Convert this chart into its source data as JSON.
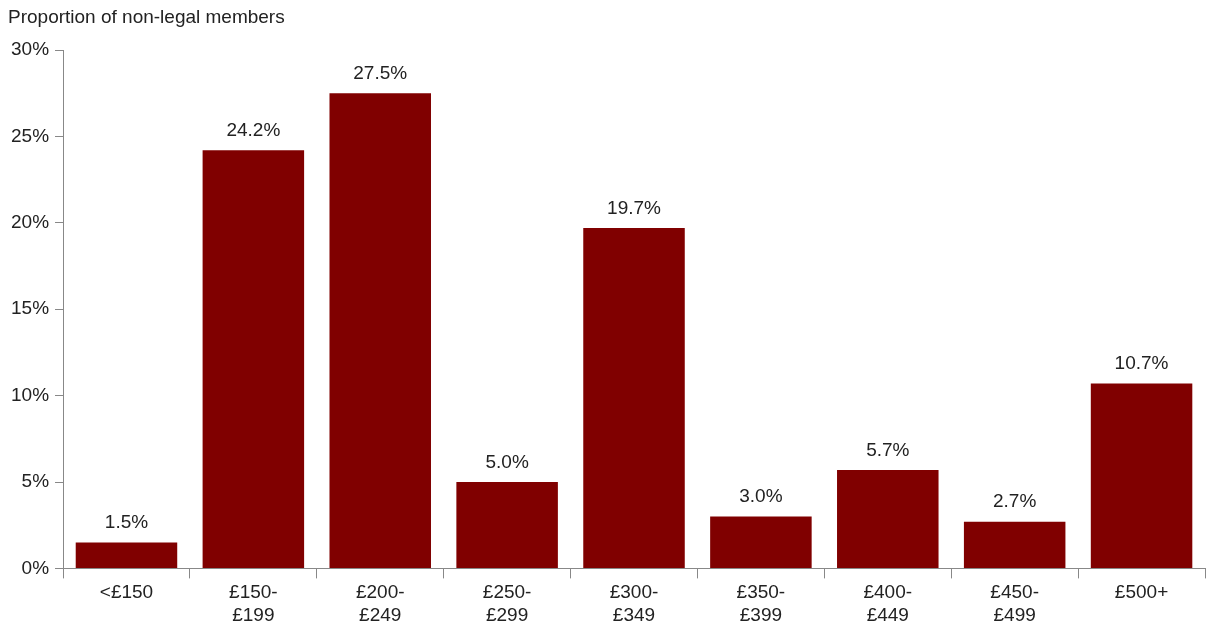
{
  "chart_data": {
    "type": "bar",
    "ylabel": "Proportion of non-legal members",
    "categories": [
      "<£150",
      "£150-£199",
      "£200-£249",
      "£250-£299",
      "£300-£349",
      "£350-£399",
      "£400-£449",
      "£450-£499",
      "£500+"
    ],
    "values": [
      1.5,
      24.2,
      27.5,
      5.0,
      19.7,
      3.0,
      5.7,
      2.7,
      10.7
    ],
    "value_labels": [
      "1.5%",
      "24.2%",
      "27.5%",
      "5.0%",
      "19.7%",
      "3.0%",
      "5.7%",
      "2.7%",
      "10.7%"
    ],
    "color": "#800000",
    "ylim": [
      0,
      30
    ],
    "yticks": [
      {
        "value": 0,
        "label": "0%"
      },
      {
        "value": 5,
        "label": "5%"
      },
      {
        "value": 10,
        "label": "10%"
      },
      {
        "value": 15,
        "label": "15%"
      },
      {
        "value": 20,
        "label": "20%"
      },
      {
        "value": 25,
        "label": "25%"
      },
      {
        "value": 30,
        "label": "30%"
      }
    ],
    "grid": false,
    "legend": false
  }
}
